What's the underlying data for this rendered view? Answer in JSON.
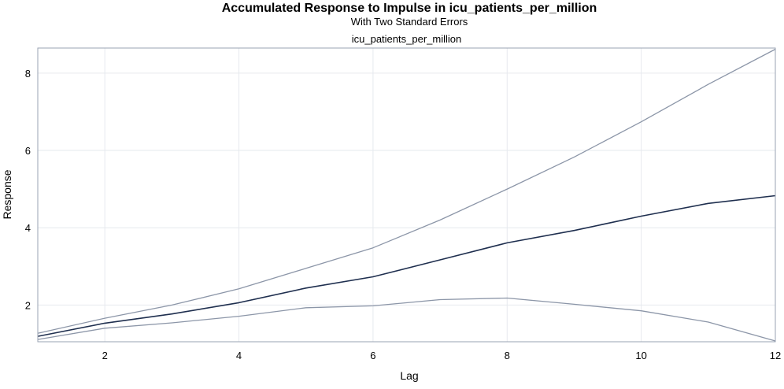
{
  "chart_data": {
    "type": "line",
    "title": "Accumulated Response to Impulse in icu_patients_per_million",
    "subtitle": "With Two Standard Errors",
    "panel_title": "icu_patients_per_million",
    "xlabel": "Lag",
    "ylabel": "Response",
    "xlim": [
      1,
      12
    ],
    "ylim": [
      1.05,
      8.65
    ],
    "xticks": [
      2,
      4,
      6,
      8,
      10,
      12
    ],
    "yticks": [
      2,
      4,
      6,
      8
    ],
    "grid": true,
    "x": [
      1,
      2,
      3,
      4,
      5,
      6,
      7,
      8,
      9,
      10,
      11,
      12
    ],
    "series": [
      {
        "role": "upper",
        "color": "#8c96a8",
        "values": [
          1.27,
          1.66,
          2.0,
          2.42,
          2.95,
          3.48,
          4.2,
          5.0,
          5.83,
          6.74,
          7.71,
          8.62
        ]
      },
      {
        "role": "response",
        "color": "#1f2f4f",
        "values": [
          1.19,
          1.53,
          1.77,
          2.06,
          2.44,
          2.73,
          3.17,
          3.61,
          3.93,
          4.3,
          4.63,
          4.83
        ]
      },
      {
        "role": "lower",
        "color": "#8c96a8",
        "values": [
          1.11,
          1.4,
          1.54,
          1.71,
          1.93,
          1.98,
          2.14,
          2.18,
          2.02,
          1.85,
          1.56,
          1.07
        ]
      }
    ]
  }
}
